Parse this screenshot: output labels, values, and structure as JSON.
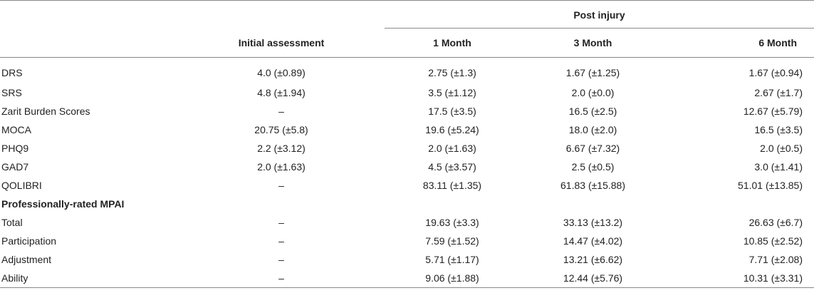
{
  "table": {
    "group_header": "Post injury",
    "columns": [
      "",
      "Initial assessment",
      "1 Month",
      "3 Month",
      "6 Month"
    ],
    "rows": [
      {
        "label": "DRS",
        "values": [
          "4.0 (±0.89)",
          "2.75 (±1.3)",
          "1.67 (±1.25)",
          "1.67 (±0.94)"
        ],
        "section": false
      },
      {
        "label": "SRS",
        "values": [
          "4.8 (±1.94)",
          "3.5 (±1.12)",
          "2.0 (±0.0)",
          "2.67 (±1.7)"
        ],
        "section": false
      },
      {
        "label": "Zarit Burden Scores",
        "values": [
          "–",
          "17.5 (±3.5)",
          "16.5 (±2.5)",
          "12.67 (±5.79)"
        ],
        "section": false
      },
      {
        "label": "MOCA",
        "values": [
          "20.75 (±5.8)",
          "19.6 (±5.24)",
          "18.0 (±2.0)",
          "16.5 (±3.5)"
        ],
        "section": false
      },
      {
        "label": "PHQ9",
        "values": [
          "2.2 (±3.12)",
          "2.0 (±1.63)",
          "6.67 (±7.32)",
          "2.0 (±0.5)"
        ],
        "section": false
      },
      {
        "label": "GAD7",
        "values": [
          "2.0 (±1.63)",
          "4.5 (±3.57)",
          "2.5 (±0.5)",
          "3.0 (±1.41)"
        ],
        "section": false
      },
      {
        "label": "QOLIBRI",
        "values": [
          "–",
          "83.11 (±1.35)",
          "61.83 (±15.88)",
          "51.01 (±13.85)"
        ],
        "section": false
      },
      {
        "label": "Professionally-rated MPAI",
        "values": [
          "",
          "",
          "",
          ""
        ],
        "section": true
      },
      {
        "label": "Total",
        "values": [
          "–",
          "19.63 (±3.3)",
          "33.13 (±13.2)",
          "26.63 (±6.7)"
        ],
        "section": false
      },
      {
        "label": "Participation",
        "values": [
          "–",
          "7.59 (±1.52)",
          "14.47 (±4.02)",
          "10.85 (±2.52)"
        ],
        "section": false
      },
      {
        "label": "Adjustment",
        "values": [
          "–",
          "5.71 (±1.17)",
          "13.21 (±6.62)",
          "7.71 (±2.08)"
        ],
        "section": false
      },
      {
        "label": "Ability",
        "values": [
          "–",
          "9.06 (±1.88)",
          "12.44 (±5.76)",
          "10.31 (±3.31)"
        ],
        "section": false
      }
    ]
  }
}
